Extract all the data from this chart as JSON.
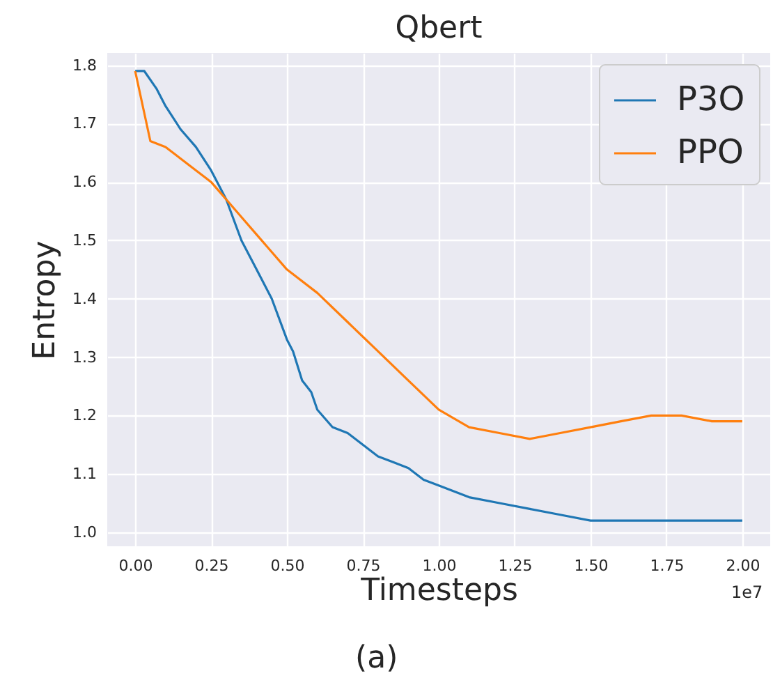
{
  "chart_data": {
    "type": "line",
    "title": "Qbert",
    "xlabel": "Timesteps",
    "ylabel": "Entropy",
    "annotations": [
      "1e7",
      "(a)"
    ],
    "xlim": [
      -0.092,
      2.092
    ],
    "xticks": [
      {
        "value": 0,
        "label": "0.00"
      },
      0.25,
      {
        "value": 0.5,
        "label": "0.50"
      },
      0.75,
      {
        "value": 1,
        "label": "1.00"
      },
      1.25,
      {
        "value": 1.5,
        "label": "1.50"
      },
      1.75,
      {
        "value": 2,
        "label": "2.00"
      }
    ],
    "ylim": [
      0.976,
      1.821
    ],
    "yticks": [
      {
        "value": 1,
        "label": "1.0"
      },
      1.1,
      1.2,
      1.3,
      1.4,
      1.5,
      1.6,
      1.7,
      {
        "value": 1.8,
        "label": "1.8"
      }
    ],
    "grid": true,
    "legend": "top right",
    "series": [
      {
        "name": "P3O",
        "color": "#1f77b4",
        "x": [
          0,
          0.03,
          0.07,
          0.1,
          0.15,
          0.2,
          0.25,
          0.3,
          0.35,
          0.4,
          0.45,
          0.5,
          0.52,
          0.55,
          0.58,
          0.6,
          0.65,
          0.7,
          0.75,
          0.8,
          0.85,
          0.9,
          0.95,
          1.0,
          1.1,
          1.2,
          1.3,
          1.4,
          1.5,
          1.6,
          1.7,
          1.8,
          1.9,
          2.0
        ],
        "values": [
          1.79,
          1.79,
          1.76,
          1.73,
          1.69,
          1.66,
          1.62,
          1.57,
          1.5,
          1.45,
          1.4,
          1.33,
          1.31,
          1.26,
          1.24,
          1.21,
          1.18,
          1.17,
          1.15,
          1.13,
          1.12,
          1.11,
          1.09,
          1.08,
          1.06,
          1.05,
          1.04,
          1.03,
          1.02,
          1.02,
          1.02,
          1.02,
          1.02,
          1.02
        ]
      },
      {
        "name": "PPO",
        "color": "#ff7f0e",
        "x": [
          0,
          0.05,
          0.1,
          0.15,
          0.2,
          0.25,
          0.3,
          0.35,
          0.4,
          0.45,
          0.5,
          0.6,
          0.7,
          0.8,
          0.9,
          1.0,
          1.1,
          1.2,
          1.3,
          1.4,
          1.5,
          1.6,
          1.7,
          1.8,
          1.9,
          2.0
        ],
        "values": [
          1.79,
          1.67,
          1.66,
          1.64,
          1.62,
          1.6,
          1.57,
          1.54,
          1.51,
          1.48,
          1.45,
          1.41,
          1.36,
          1.31,
          1.26,
          1.21,
          1.18,
          1.17,
          1.16,
          1.17,
          1.18,
          1.19,
          1.2,
          1.2,
          1.19,
          1.19
        ]
      }
    ]
  }
}
